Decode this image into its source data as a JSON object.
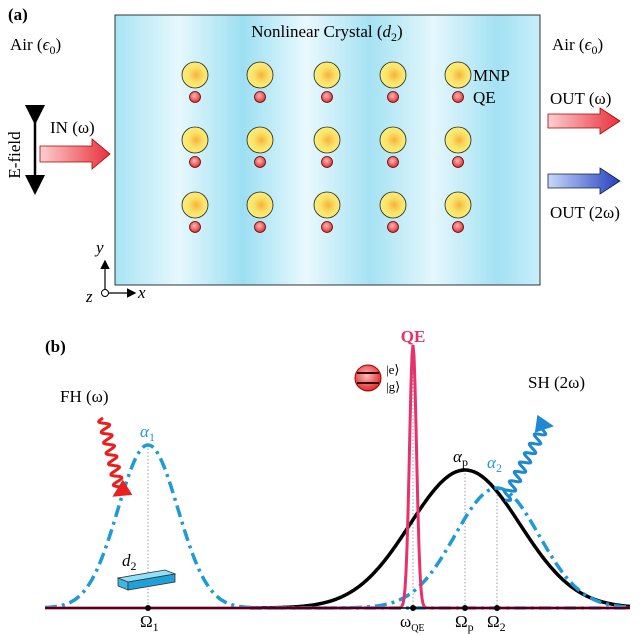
{
  "panel_a": {
    "label": "(a)",
    "crystal": {
      "text": "Nonlinear Crystal (",
      "var": "d",
      "sub": "2",
      "close": ")"
    },
    "air_left": {
      "text": "Air (",
      "base": "ϵ",
      "sub": "0",
      "close": ")"
    },
    "air_right": {
      "text": "Air (",
      "base": "ϵ",
      "sub": "0",
      "close": ")"
    },
    "mnp": "MNP",
    "qe": "QE",
    "input": "IN (ω)",
    "efield": "E-field",
    "out_fh": "OUT (ω)",
    "out_sh": "OUT (2ω)",
    "axis_y": "y",
    "axis_z": "z",
    "axis_x": "x"
  },
  "panel_b": {
    "label": "(b)",
    "qe": "QE",
    "ket_e": "|e⟩",
    "ket_g": "|g⟩",
    "fh": "FH (ω)",
    "sh": "SH (2ω)",
    "alpha1": {
      "base": "α",
      "sub": "1"
    },
    "alphap": {
      "base": "α",
      "sub": "p"
    },
    "alpha2": {
      "base": "α",
      "sub": "2"
    },
    "d2": {
      "base": "d",
      "sub": "2"
    },
    "omega1": {
      "base": "Ω",
      "sub": "1"
    },
    "omegaqe": {
      "base": "ω",
      "sub": "QE"
    },
    "omegap": {
      "base": "Ω",
      "sub": "p"
    },
    "omega2": {
      "base": "Ω",
      "sub": "2"
    }
  }
}
